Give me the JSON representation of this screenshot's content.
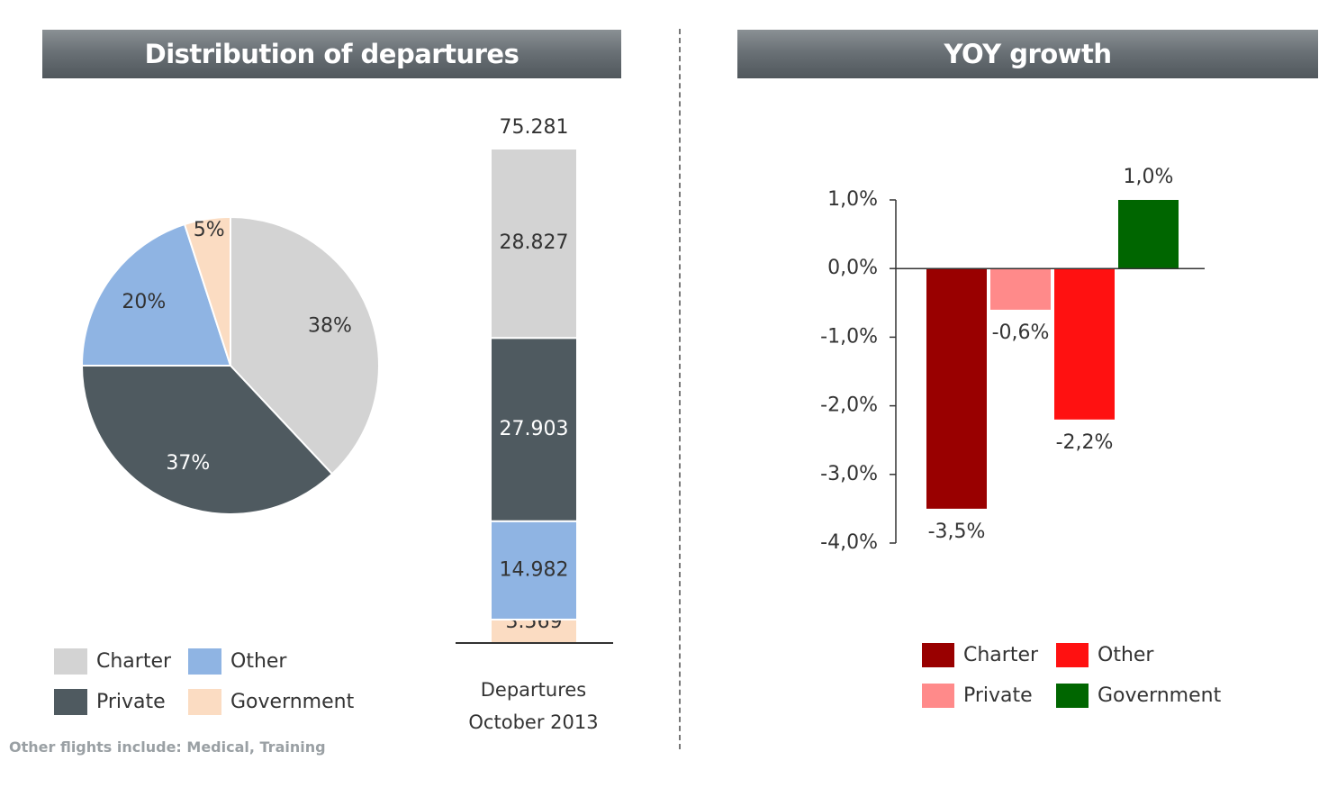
{
  "banners": {
    "left": "Distribution of departures",
    "right": "YOY growth"
  },
  "chart_data": [
    {
      "type": "pie",
      "title": "Distribution of departures",
      "series": [
        {
          "name": "Charter",
          "value": 38,
          "label": "38%",
          "color": "#d3d3d3"
        },
        {
          "name": "Private",
          "value": 37,
          "label": "37%",
          "color": "#4f5a60"
        },
        {
          "name": "Other",
          "value": 20,
          "label": "20%",
          "color": "#8fb4e3"
        },
        {
          "name": "Government",
          "value": 5,
          "label": "5%",
          "color": "#fbdcc2"
        }
      ]
    },
    {
      "type": "bar",
      "stacked": true,
      "categories": [
        "Departures October 2013"
      ],
      "total": 75.281,
      "total_label": "75.281",
      "series": [
        {
          "name": "Government",
          "value": 3.569,
          "label": "3.569",
          "color": "#fbdcc2"
        },
        {
          "name": "Other",
          "value": 14.982,
          "label": "14.982",
          "color": "#8fb4e3"
        },
        {
          "name": "Private",
          "value": 27.903,
          "label": "27.903",
          "color": "#4f5a60"
        },
        {
          "name": "Charter",
          "value": 28.827,
          "label": "28.827",
          "color": "#d3d3d3"
        }
      ]
    },
    {
      "type": "bar",
      "title": "YOY growth",
      "categories": [
        "Charter",
        "Private",
        "Other",
        "Government"
      ],
      "values": [
        -3.5,
        -0.6,
        -2.2,
        1.0
      ],
      "value_labels": [
        "-3,5%",
        "-0,6%",
        "-2,2%",
        "1,0%"
      ],
      "colors": [
        "#990000",
        "#ff8a8a",
        "#ff1111",
        "#006600"
      ],
      "ylim": [
        -4.0,
        1.0
      ],
      "yticks": [
        1.0,
        0.0,
        -1.0,
        -2.0,
        -3.0,
        -4.0
      ],
      "ytick_labels": [
        "1,0%",
        "0,0%",
        "-1,0%",
        "-2,0%",
        "-3,0%",
        "-4,0%"
      ],
      "grid": false,
      "legend_position": "bottom"
    }
  ],
  "left_legend": [
    {
      "label": "Charter",
      "color": "#d3d3d3"
    },
    {
      "label": "Other",
      "color": "#8fb4e3"
    },
    {
      "label": "Private",
      "color": "#4f5a60"
    },
    {
      "label": "Government",
      "color": "#fbdcc2"
    }
  ],
  "right_legend": [
    {
      "label": "Charter",
      "color": "#990000"
    },
    {
      "label": "Other",
      "color": "#ff1111"
    },
    {
      "label": "Private",
      "color": "#ff8a8a"
    },
    {
      "label": "Government",
      "color": "#006600"
    }
  ],
  "caption": {
    "line1": "Departures",
    "line2": "October 2013"
  },
  "footnote": "Other flights include: Medical, Training"
}
